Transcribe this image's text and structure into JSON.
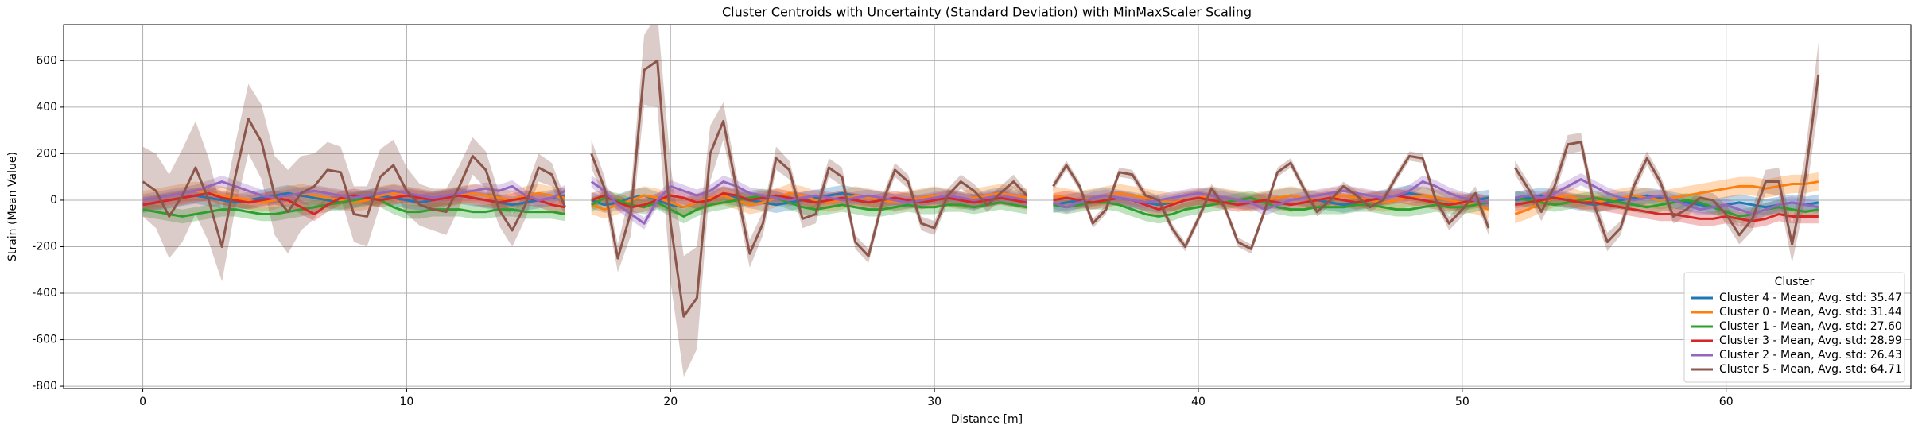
{
  "chart_data": {
    "type": "line",
    "title": "Cluster Centroids with Uncertainty (Standard Deviation) with MinMaxScaler Scaling",
    "xlabel": "Distance [m]",
    "ylabel": "Strain (Mean Value)",
    "xlim": [
      -3.0,
      67.0
    ],
    "ylim": [
      -810,
      755
    ],
    "xticks": [
      0,
      10,
      20,
      30,
      40,
      50,
      60
    ],
    "yticks": [
      -800,
      -600,
      -400,
      -200,
      0,
      200,
      400,
      600
    ],
    "grid": true,
    "legend": "lower right",
    "legend_title": "Cluster",
    "x": [
      0,
      0.5,
      1,
      1.5,
      2,
      2.5,
      3,
      3.5,
      4,
      4.5,
      5,
      5.5,
      6,
      6.5,
      7,
      7.5,
      8,
      8.5,
      9,
      9.5,
      10,
      10.5,
      11,
      11.5,
      12,
      12.5,
      13,
      13.5,
      14,
      14.5,
      15,
      15.5,
      16,
      16.5,
      17,
      17.5,
      18,
      18.5,
      19,
      19.5,
      20,
      20.5,
      21,
      21.5,
      22,
      22.5,
      23,
      23.5,
      24,
      24.5,
      25,
      25.5,
      26,
      26.5,
      27,
      27.5,
      28,
      28.5,
      29,
      29.5,
      30,
      30.5,
      31,
      31.5,
      32,
      32.5,
      33,
      33.5,
      34,
      34.5,
      35,
      35.5,
      36,
      36.5,
      37,
      37.5,
      38,
      38.5,
      39,
      39.5,
      40,
      40.5,
      41,
      41.5,
      42,
      42.5,
      43,
      43.5,
      44,
      44.5,
      45,
      45.5,
      46,
      46.5,
      47,
      47.5,
      48,
      48.5,
      49,
      49.5,
      50,
      50.5,
      51,
      51.5,
      52,
      52.5,
      53,
      53.5,
      54,
      54.5,
      55,
      55.5,
      56,
      56.5,
      57,
      57.5,
      58,
      58.5,
      59,
      59.5,
      60,
      60.5,
      61,
      61.5,
      62,
      62.5,
      63,
      63.5
    ],
    "series": [
      {
        "name": "Cluster 4 - Mean, Avg. std: 35.47",
        "color": "#1f77b4",
        "std": 35,
        "values": [
          -20,
          -10,
          0,
          10,
          20,
          10,
          0,
          -10,
          0,
          10,
          20,
          30,
          20,
          10,
          0,
          -10,
          0,
          10,
          20,
          10,
          0,
          -10,
          0,
          10,
          20,
          10,
          0,
          -10,
          -20,
          -10,
          0,
          10,
          20,
          null,
          0,
          -20,
          -10,
          10,
          20,
          0,
          -20,
          -30,
          -10,
          10,
          20,
          10,
          0,
          -10,
          -20,
          -10,
          0,
          10,
          20,
          30,
          20,
          10,
          0,
          -10,
          0,
          10,
          20,
          10,
          0,
          -10,
          10,
          20,
          10,
          0,
          null,
          -20,
          -10,
          0,
          10,
          20,
          10,
          0,
          -10,
          -20,
          -10,
          0,
          10,
          20,
          10,
          0,
          -10,
          0,
          10,
          20,
          10,
          0,
          -10,
          -20,
          -10,
          0,
          10,
          20,
          30,
          20,
          10,
          0,
          -10,
          0,
          10,
          null,
          0,
          10,
          20,
          10,
          0,
          -10,
          -20,
          -10,
          0,
          10,
          20,
          10,
          0,
          -10,
          -20,
          -30,
          -20,
          -10,
          -20,
          -30,
          -20,
          -10,
          -20,
          -10
        ]
      },
      {
        "name": "Cluster 0 - Mean, Avg. std: 31.44",
        "color": "#ff7f0e",
        "std": 40,
        "values": [
          0,
          10,
          20,
          30,
          40,
          30,
          20,
          10,
          0,
          -10,
          0,
          20,
          30,
          20,
          10,
          0,
          -10,
          0,
          20,
          30,
          20,
          10,
          0,
          10,
          20,
          30,
          20,
          10,
          0,
          20,
          30,
          20,
          10,
          null,
          -20,
          -40,
          -20,
          0,
          20,
          10,
          -10,
          -30,
          -10,
          10,
          20,
          0,
          -20,
          -10,
          10,
          30,
          20,
          0,
          -10,
          0,
          20,
          10,
          0,
          -10,
          0,
          10,
          20,
          10,
          0,
          10,
          20,
          30,
          20,
          10,
          null,
          20,
          10,
          0,
          10,
          20,
          30,
          20,
          10,
          0,
          -10,
          0,
          10,
          20,
          10,
          0,
          -10,
          0,
          10,
          20,
          10,
          0,
          10,
          20,
          10,
          0,
          -10,
          0,
          10,
          20,
          10,
          0,
          -10,
          -20,
          -40,
          null,
          -60,
          -40,
          -10,
          10,
          20,
          0,
          -10,
          0,
          10,
          20,
          10,
          0,
          10,
          20,
          30,
          40,
          50,
          60,
          60,
          50,
          60,
          70,
          70,
          80
        ]
      },
      {
        "name": "Cluster 1 - Mean, Avg. std: 27.60",
        "color": "#2ca02c",
        "std": 30,
        "values": [
          -40,
          -50,
          -60,
          -70,
          -60,
          -50,
          -40,
          -40,
          -50,
          -60,
          -60,
          -50,
          -40,
          -30,
          -20,
          -10,
          0,
          10,
          0,
          -30,
          -50,
          -50,
          -40,
          -40,
          -40,
          -50,
          -50,
          -40,
          -40,
          -50,
          -50,
          -50,
          -60,
          null,
          -20,
          10,
          0,
          -20,
          -30,
          -10,
          -40,
          -70,
          -40,
          -20,
          -10,
          0,
          10,
          20,
          10,
          -10,
          -30,
          -40,
          -30,
          -20,
          -30,
          -40,
          -40,
          -30,
          -20,
          -30,
          -30,
          -20,
          -20,
          -30,
          -20,
          -10,
          -20,
          -30,
          null,
          -20,
          -30,
          -20,
          -10,
          -10,
          -20,
          -40,
          -60,
          -70,
          -60,
          -40,
          -30,
          -20,
          -10,
          0,
          10,
          -10,
          -30,
          -40,
          -40,
          -30,
          -30,
          -30,
          -20,
          -20,
          -30,
          -40,
          -40,
          -30,
          -20,
          -30,
          -30,
          -20,
          -10,
          null,
          10,
          0,
          -10,
          -20,
          -10,
          0,
          10,
          0,
          -10,
          -20,
          -30,
          -20,
          -10,
          0,
          -10,
          -30,
          -50,
          -70,
          -60,
          -40,
          -30,
          -40,
          -50,
          -40
        ]
      },
      {
        "name": "Cluster 3 - Mean, Avg. std: 28.99",
        "color": "#d62728",
        "std": 30,
        "values": [
          -20,
          -10,
          0,
          10,
          20,
          30,
          10,
          0,
          -10,
          0,
          10,
          0,
          -30,
          -60,
          -20,
          10,
          20,
          10,
          0,
          10,
          20,
          10,
          0,
          10,
          20,
          10,
          0,
          -10,
          0,
          10,
          0,
          -20,
          -30,
          null,
          0,
          20,
          -10,
          -30,
          -20,
          0,
          20,
          10,
          -10,
          0,
          30,
          20,
          0,
          10,
          20,
          10,
          0,
          -10,
          0,
          10,
          0,
          -10,
          0,
          10,
          0,
          -10,
          0,
          10,
          0,
          -10,
          0,
          10,
          0,
          -10,
          null,
          0,
          10,
          0,
          -10,
          0,
          10,
          0,
          -20,
          -40,
          -20,
          0,
          10,
          0,
          -10,
          -20,
          -10,
          0,
          -10,
          -20,
          -10,
          0,
          10,
          0,
          -10,
          0,
          10,
          20,
          10,
          0,
          -10,
          -20,
          -10,
          0,
          -10,
          null,
          -20,
          -10,
          0,
          10,
          0,
          -10,
          -10,
          -20,
          -30,
          -40,
          -50,
          -60,
          -60,
          -70,
          -80,
          -80,
          -70,
          -80,
          -90,
          -80,
          -60,
          -70,
          -70,
          -70
        ]
      },
      {
        "name": "Cluster 2 - Mean, Avg. std: 26.43",
        "color": "#9467bd",
        "std": 26,
        "values": [
          0,
          10,
          20,
          30,
          40,
          60,
          80,
          60,
          40,
          20,
          10,
          20,
          30,
          40,
          30,
          20,
          10,
          20,
          30,
          40,
          30,
          20,
          10,
          20,
          30,
          40,
          50,
          40,
          60,
          20,
          0,
          10,
          40,
          null,
          80,
          40,
          -20,
          -60,
          -100,
          0,
          60,
          40,
          20,
          40,
          80,
          60,
          30,
          20,
          10,
          0,
          10,
          20,
          10,
          0,
          10,
          20,
          10,
          0,
          -10,
          0,
          10,
          20,
          10,
          0,
          10,
          20,
          10,
          0,
          null,
          -10,
          -30,
          -10,
          10,
          20,
          10,
          0,
          -10,
          0,
          10,
          20,
          30,
          20,
          10,
          0,
          -10,
          -40,
          -20,
          0,
          10,
          20,
          30,
          40,
          30,
          20,
          10,
          20,
          40,
          80,
          60,
          30,
          10,
          0,
          -10,
          null,
          10,
          20,
          10,
          30,
          60,
          90,
          60,
          30,
          10,
          0,
          10,
          20,
          0,
          -20,
          -40,
          -30,
          -20,
          -40,
          -60,
          -40,
          -20,
          -10,
          -20,
          -30
        ]
      },
      {
        "name": "Cluster 5 - Mean, Avg. std: 64.71",
        "color": "#8c564b",
        "std": [
          150,
          160,
          180,
          200,
          200,
          180,
          150,
          140,
          150,
          160,
          170,
          180,
          160,
          140,
          120,
          110,
          120,
          130,
          120,
          110,
          100,
          90,
          90,
          100,
          90,
          80,
          80,
          70,
          70,
          60,
          60,
          50,
          40,
          null,
          60,
          50,
          60,
          100,
          150,
          200,
          250,
          260,
          220,
          120,
          80,
          60,
          60,
          50,
          50,
          40,
          40,
          40,
          40,
          40,
          30,
          30,
          30,
          30,
          30,
          30,
          30,
          30,
          30,
          30,
          30,
          30,
          30,
          20,
          null,
          20,
          20,
          20,
          20,
          20,
          20,
          20,
          20,
          20,
          20,
          20,
          20,
          20,
          20,
          20,
          20,
          20,
          20,
          20,
          20,
          20,
          20,
          20,
          20,
          20,
          20,
          20,
          20,
          20,
          20,
          30,
          30,
          30,
          30,
          null,
          30,
          30,
          40,
          40,
          40,
          40,
          40,
          40,
          30,
          30,
          30,
          30,
          30,
          30,
          30,
          30,
          40,
          40,
          50,
          50,
          60,
          80,
          100,
          140
        ],
        "values": [
          80,
          40,
          -70,
          20,
          140,
          0,
          -200,
          100,
          350,
          250,
          20,
          -50,
          30,
          60,
          130,
          120,
          -60,
          -70,
          100,
          150,
          40,
          -20,
          -40,
          -50,
          60,
          190,
          130,
          -40,
          -130,
          -20,
          140,
          110,
          -30,
          null,
          200,
          50,
          -250,
          -50,
          560,
          600,
          -100,
          -500,
          -420,
          200,
          340,
          50,
          -230,
          -100,
          180,
          130,
          -80,
          -60,
          140,
          100,
          -180,
          -240,
          -20,
          130,
          80,
          -100,
          -120,
          20,
          80,
          40,
          -20,
          30,
          80,
          20,
          null,
          60,
          150,
          60,
          -100,
          -40,
          120,
          110,
          20,
          0,
          -120,
          -200,
          -80,
          50,
          -30,
          -180,
          -210,
          -50,
          120,
          160,
          50,
          -50,
          0,
          60,
          20,
          -30,
          0,
          100,
          190,
          180,
          0,
          -100,
          -40,
          30,
          -120,
          null,
          140,
          50,
          -50,
          60,
          240,
          250,
          -20,
          -180,
          -120,
          60,
          180,
          80,
          -70,
          -40,
          10,
          0,
          -60,
          -150,
          -80,
          80,
          80,
          -190,
          100,
          540
        ]
      }
    ]
  }
}
